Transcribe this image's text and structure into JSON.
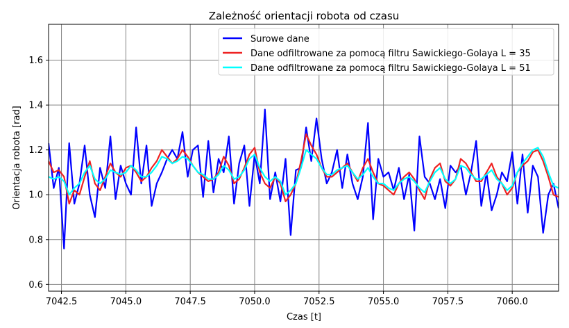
{
  "chart_data": {
    "type": "line",
    "title": "Zależność orientacji robota od czasu",
    "xlabel": "Czas [t]",
    "ylabel": "Orientacja robota [rad]",
    "xlim": [
      7042.0,
      7061.8
    ],
    "ylim": [
      0.57,
      1.76
    ],
    "xticks": [
      7042.5,
      7045.0,
      7047.5,
      7050.0,
      7052.5,
      7055.0,
      7057.5,
      7060.0
    ],
    "xtick_labels": [
      "7042.5",
      "7045.0",
      "7047.5",
      "7050.0",
      "7052.5",
      "7055.0",
      "7057.5",
      "7060.0"
    ],
    "yticks": [
      0.6,
      0.8,
      1.0,
      1.2,
      1.4,
      1.6
    ],
    "ytick_labels": [
      "0.6",
      "0.8",
      "1.0",
      "1.2",
      "1.4",
      "1.6"
    ],
    "grid": true,
    "legend_position": "top-right",
    "x": [
      7042.0,
      7042.2,
      7042.4,
      7042.6,
      7042.8,
      7043.0,
      7043.2,
      7043.4,
      7043.6,
      7043.8,
      7044.0,
      7044.2,
      7044.4,
      7044.6,
      7044.8,
      7045.0,
      7045.2,
      7045.4,
      7045.6,
      7045.8,
      7046.0,
      7046.2,
      7046.4,
      7046.6,
      7046.8,
      7047.0,
      7047.2,
      7047.4,
      7047.6,
      7047.8,
      7048.0,
      7048.2,
      7048.4,
      7048.6,
      7048.8,
      7049.0,
      7049.2,
      7049.4,
      7049.6,
      7049.8,
      7050.0,
      7050.2,
      7050.4,
      7050.6,
      7050.8,
      7051.0,
      7051.2,
      7051.4,
      7051.6,
      7051.8,
      7052.0,
      7052.2,
      7052.4,
      7052.6,
      7052.8,
      7053.0,
      7053.2,
      7053.4,
      7053.6,
      7053.8,
      7054.0,
      7054.2,
      7054.4,
      7054.6,
      7054.8,
      7055.0,
      7055.2,
      7055.4,
      7055.6,
      7055.8,
      7056.0,
      7056.2,
      7056.4,
      7056.6,
      7056.8,
      7057.0,
      7057.2,
      7057.4,
      7057.6,
      7057.8,
      7058.0,
      7058.2,
      7058.4,
      7058.6,
      7058.8,
      7059.0,
      7059.2,
      7059.4,
      7059.6,
      7059.8,
      7060.0,
      7060.2,
      7060.4,
      7060.6,
      7060.8,
      7061.0,
      7061.2,
      7061.4,
      7061.6,
      7061.8
    ],
    "series": [
      {
        "name": "Surowe dane",
        "color": "#0000ff",
        "values": [
          1.23,
          1.03,
          1.12,
          0.76,
          1.23,
          0.96,
          1.05,
          1.22,
          1.0,
          0.9,
          1.12,
          1.03,
          1.26,
          0.98,
          1.13,
          1.05,
          1.0,
          1.3,
          1.05,
          1.22,
          0.95,
          1.05,
          1.1,
          1.16,
          1.2,
          1.16,
          1.28,
          1.08,
          1.2,
          1.22,
          0.99,
          1.24,
          1.01,
          1.16,
          1.1,
          1.26,
          0.96,
          1.14,
          1.22,
          0.95,
          1.18,
          1.05,
          1.38,
          0.98,
          1.1,
          0.97,
          1.16,
          0.82,
          1.11,
          1.12,
          1.3,
          1.15,
          1.34,
          1.16,
          1.05,
          1.1,
          1.2,
          1.03,
          1.18,
          1.05,
          0.98,
          1.08,
          1.32,
          0.89,
          1.16,
          1.08,
          1.1,
          1.02,
          1.12,
          0.98,
          1.09,
          0.84,
          1.26,
          1.08,
          1.05,
          0.98,
          1.07,
          0.94,
          1.13,
          1.1,
          1.13,
          1.0,
          1.1,
          1.24,
          0.95,
          1.1,
          0.93,
          1.0,
          1.1,
          1.06,
          1.19,
          0.96,
          1.18,
          0.92,
          1.13,
          1.08,
          0.83,
          1.0,
          1.05,
          0.94
        ]
      },
      {
        "name": "Dane odfiltrowane za pomocą filtru Sawickiego-Golaya L = 35",
        "color": "#ee2222",
        "values": [
          1.15,
          1.1,
          1.11,
          1.08,
          0.96,
          1.02,
          1.0,
          1.08,
          1.15,
          1.05,
          1.02,
          1.08,
          1.14,
          1.1,
          1.08,
          1.12,
          1.13,
          1.1,
          1.06,
          1.08,
          1.12,
          1.15,
          1.2,
          1.17,
          1.14,
          1.16,
          1.2,
          1.17,
          1.13,
          1.1,
          1.08,
          1.06,
          1.07,
          1.1,
          1.17,
          1.13,
          1.05,
          1.07,
          1.12,
          1.18,
          1.21,
          1.1,
          1.05,
          1.03,
          1.08,
          1.05,
          0.97,
          1.0,
          1.05,
          1.15,
          1.27,
          1.22,
          1.18,
          1.12,
          1.08,
          1.08,
          1.1,
          1.12,
          1.14,
          1.1,
          1.06,
          1.12,
          1.16,
          1.1,
          1.05,
          1.04,
          1.02,
          1.0,
          1.05,
          1.08,
          1.1,
          1.07,
          1.02,
          0.98,
          1.07,
          1.12,
          1.14,
          1.06,
          1.04,
          1.07,
          1.16,
          1.14,
          1.1,
          1.06,
          1.06,
          1.1,
          1.14,
          1.08,
          1.05,
          1.0,
          1.03,
          1.1,
          1.13,
          1.15,
          1.19,
          1.2,
          1.15,
          1.08,
          1.0,
          0.99
        ]
      },
      {
        "name": "Dane odfiltrowane za pomocą filtru Sawickiego-Golaya L = 51",
        "color": "#00ffff",
        "values": [
          1.08,
          1.07,
          1.08,
          1.06,
          1.0,
          1.03,
          1.05,
          1.1,
          1.13,
          1.07,
          1.05,
          1.07,
          1.11,
          1.1,
          1.09,
          1.1,
          1.13,
          1.11,
          1.08,
          1.08,
          1.1,
          1.13,
          1.17,
          1.16,
          1.14,
          1.15,
          1.17,
          1.16,
          1.13,
          1.1,
          1.09,
          1.07,
          1.07,
          1.09,
          1.13,
          1.11,
          1.07,
          1.08,
          1.11,
          1.16,
          1.18,
          1.12,
          1.08,
          1.06,
          1.08,
          1.06,
          1.0,
          1.02,
          1.05,
          1.12,
          1.2,
          1.18,
          1.16,
          1.12,
          1.09,
          1.09,
          1.11,
          1.12,
          1.13,
          1.1,
          1.07,
          1.09,
          1.12,
          1.08,
          1.05,
          1.05,
          1.03,
          1.02,
          1.05,
          1.07,
          1.08,
          1.06,
          1.03,
          1.01,
          1.06,
          1.1,
          1.12,
          1.07,
          1.05,
          1.07,
          1.13,
          1.12,
          1.09,
          1.07,
          1.07,
          1.09,
          1.11,
          1.07,
          1.05,
          1.02,
          1.04,
          1.1,
          1.14,
          1.17,
          1.2,
          1.21,
          1.17,
          1.1,
          1.04,
          1.03
        ]
      }
    ]
  }
}
